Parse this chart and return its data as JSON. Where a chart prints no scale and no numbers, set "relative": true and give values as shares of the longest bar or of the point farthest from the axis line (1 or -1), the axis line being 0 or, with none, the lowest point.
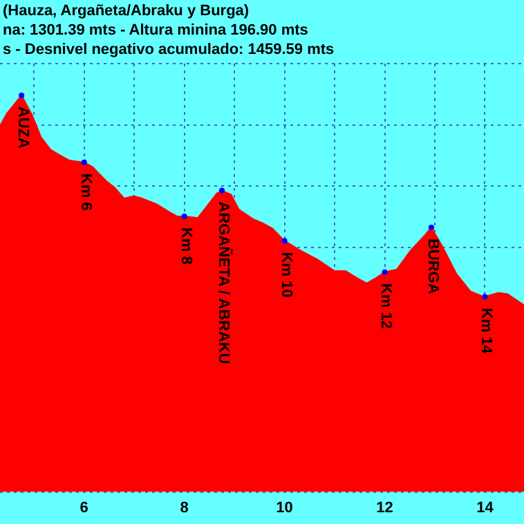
{
  "chart_data": {
    "type": "area",
    "title": "(Hauza, Argañeta/Abraku y Burga)",
    "subtitle": "na: 1301.39 mts - Altura minina 196.90 mts",
    "relative": true,
    "grid": true,
    "legend": false,
    "xlim": [
      4.32,
      14.78
    ],
    "xticks": [
      {
        "value": 5,
        "label": null
      },
      6,
      {
        "value": 7,
        "label": null
      },
      8,
      {
        "value": 9,
        "label": null
      },
      10,
      {
        "value": 11,
        "label": null
      },
      12,
      {
        "value": 13,
        "label": null
      },
      14
    ],
    "series": [
      {
        "color": "#ff0000",
        "x": [
          4.32,
          4.45,
          4.75,
          4.95,
          5.14,
          5.33,
          5.5,
          5.7,
          5.92,
          6.0,
          6.17,
          6.44,
          6.61,
          6.8,
          6.99,
          7.16,
          7.44,
          7.71,
          7.85,
          8.0,
          8.27,
          8.46,
          8.65,
          8.75,
          8.93,
          9.09,
          9.37,
          9.56,
          9.76,
          10.0,
          10.31,
          10.67,
          11.0,
          11.22,
          11.44,
          11.64,
          11.83,
          12.0,
          12.24,
          12.52,
          12.8,
          12.93,
          13.15,
          13.43,
          13.71,
          13.98,
          14.26,
          14.45,
          14.78
        ],
        "values": [
          0.923,
          0.953,
          1.0,
          0.953,
          0.894,
          0.863,
          0.85,
          0.836,
          0.832,
          0.831,
          0.819,
          0.784,
          0.767,
          0.74,
          0.746,
          0.74,
          0.726,
          0.705,
          0.695,
          0.695,
          0.691,
          0.722,
          0.753,
          0.76,
          0.75,
          0.712,
          0.688,
          0.678,
          0.664,
          0.633,
          0.609,
          0.585,
          0.557,
          0.557,
          0.54,
          0.526,
          0.54,
          0.554,
          0.561,
          0.609,
          0.647,
          0.667,
          0.619,
          0.55,
          0.506,
          0.492,
          0.502,
          0.499,
          0.471
        ]
      }
    ],
    "annotations": [
      "s - Desnivel negativo acumulado: 1459.59 mts",
      {
        "text": "AUZA",
        "x": 4.75,
        "y": 1.0
      },
      {
        "text": "Km 6",
        "x": 6.0,
        "y": 0.831
      },
      {
        "text": "Km 8",
        "x": 8.0,
        "y": 0.695
      },
      {
        "text": "ARGAÑETA / ABRAKU",
        "x": 8.75,
        "y": 0.76
      },
      {
        "text": "Km 10",
        "x": 10.0,
        "y": 0.633
      },
      {
        "text": "Km 12",
        "x": 12.0,
        "y": 0.554
      },
      {
        "text": "BURGA",
        "x": 12.93,
        "y": 0.667
      },
      {
        "text": "Km 14",
        "x": 14.0,
        "y": 0.492
      }
    ]
  }
}
